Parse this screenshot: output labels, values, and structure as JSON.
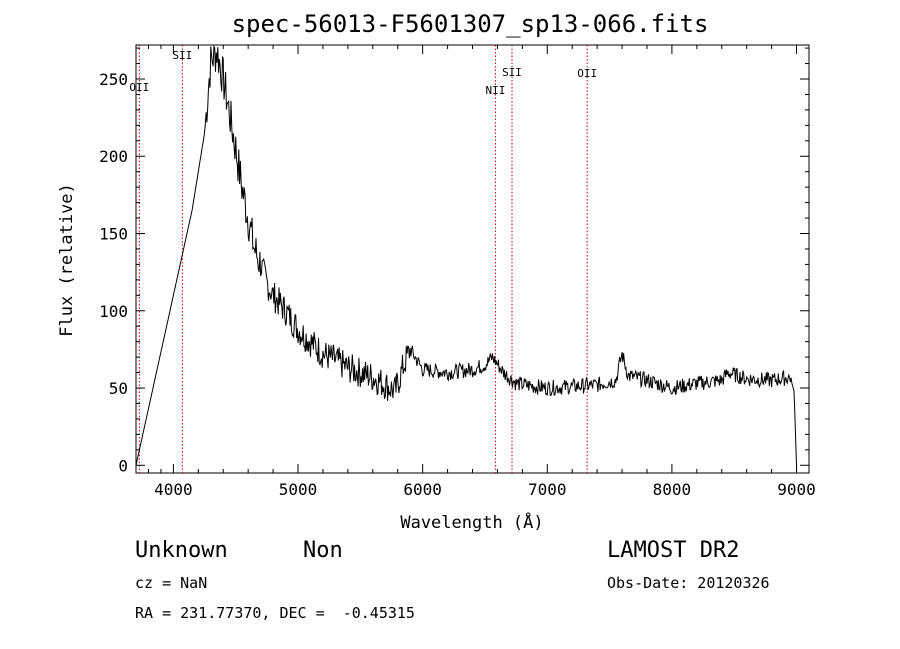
{
  "chart_data": {
    "type": "line",
    "title": "spec-56013-F5601307_sp13-066.fits",
    "xlabel": "Wavelength (Å)",
    "ylabel": "Flux (relative)",
    "xlim": [
      3700,
      9100
    ],
    "ylim": [
      -5,
      272
    ],
    "xticks": [
      4000,
      5000,
      6000,
      7000,
      8000,
      9000
    ],
    "yticks": [
      0,
      50,
      100,
      150,
      200,
      250
    ],
    "grid": false,
    "line_color": "#000000",
    "marker_color": "#cc0000",
    "series": [
      {
        "x": [
          3700,
          3850,
          4000,
          4150,
          4250,
          4300,
          4350,
          4400,
          4450,
          4500,
          4550,
          4600,
          4650,
          4700,
          4750,
          4800,
          4900,
          5000,
          5100,
          5200,
          5300,
          5400,
          5500,
          5600,
          5700,
          5780,
          5850,
          5900,
          6000,
          6200,
          6400,
          6500,
          6560,
          6650,
          6750,
          6900,
          7000,
          7200,
          7400,
          7550,
          7600,
          7650,
          7800,
          8000,
          8200,
          8400,
          8450,
          8600,
          8800,
          8950,
          8980,
          9000
        ],
        "y": [
          0,
          55,
          110,
          165,
          215,
          262,
          268,
          250,
          228,
          205,
          180,
          160,
          140,
          130,
          118,
          110,
          100,
          88,
          80,
          72,
          68,
          63,
          60,
          57,
          52,
          48,
          65,
          75,
          62,
          60,
          62,
          65,
          70,
          60,
          53,
          51,
          50,
          51,
          52,
          55,
          72,
          58,
          55,
          50,
          53,
          55,
          60,
          56,
          55,
          57,
          48,
          0
        ]
      }
    ],
    "line_markers": [
      {
        "label": "OII",
        "x": 3727
      },
      {
        "label": "SII",
        "x": 4072
      },
      {
        "label": "NII",
        "x": 6584
      },
      {
        "label": "SII",
        "x": 6717
      },
      {
        "label": "OII",
        "x": 7320
      }
    ]
  },
  "info": {
    "object_class": "Unknown",
    "object_subclass": "Non",
    "survey": "LAMOST DR2",
    "cz": "cz = NaN",
    "obs_date": "Obs-Date: 20120326",
    "radec": "RA = 231.77370, DEC =  -0.45315"
  }
}
